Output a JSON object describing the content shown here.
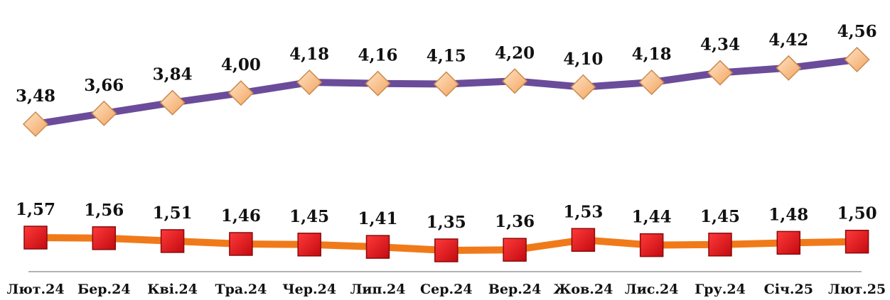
{
  "chart_data": {
    "type": "line",
    "title": "",
    "xlabel": "",
    "ylabel": "",
    "categories": [
      "Лют.24",
      "Бер.24",
      "Кві.24",
      "Тра.24",
      "Чер.24",
      "Лип.24",
      "Сер.24",
      "Вер.24",
      "Жов.24",
      "Лис.24",
      "Гру.24",
      "Січ.25",
      "Лют.25"
    ],
    "series": [
      {
        "values": [
          3.48,
          3.66,
          3.84,
          4.0,
          4.18,
          4.16,
          4.15,
          4.2,
          4.1,
          4.18,
          4.34,
          4.42,
          4.56
        ],
        "labels": [
          "3,48",
          "3,66",
          "3,84",
          "4,00",
          "4,18",
          "4,16",
          "4,15",
          "4,20",
          "4,10",
          "4,18",
          "4,34",
          "4,42",
          "4,56"
        ],
        "line_color": "#6b4c9a",
        "marker": "diamond",
        "marker_color": "#fbc08a"
      },
      {
        "values": [
          1.57,
          1.56,
          1.51,
          1.46,
          1.45,
          1.41,
          1.35,
          1.36,
          1.53,
          1.44,
          1.45,
          1.48,
          1.5
        ],
        "labels": [
          "1,57",
          "1,56",
          "1,51",
          "1,46",
          "1,45",
          "1,41",
          "1,35",
          "1,36",
          "1,53",
          "1,44",
          "1,45",
          "1,48",
          "1,50"
        ],
        "line_color": "#f07a1a",
        "marker": "square",
        "marker_color": "#e8141a"
      }
    ],
    "grid": false,
    "legend": "none"
  }
}
